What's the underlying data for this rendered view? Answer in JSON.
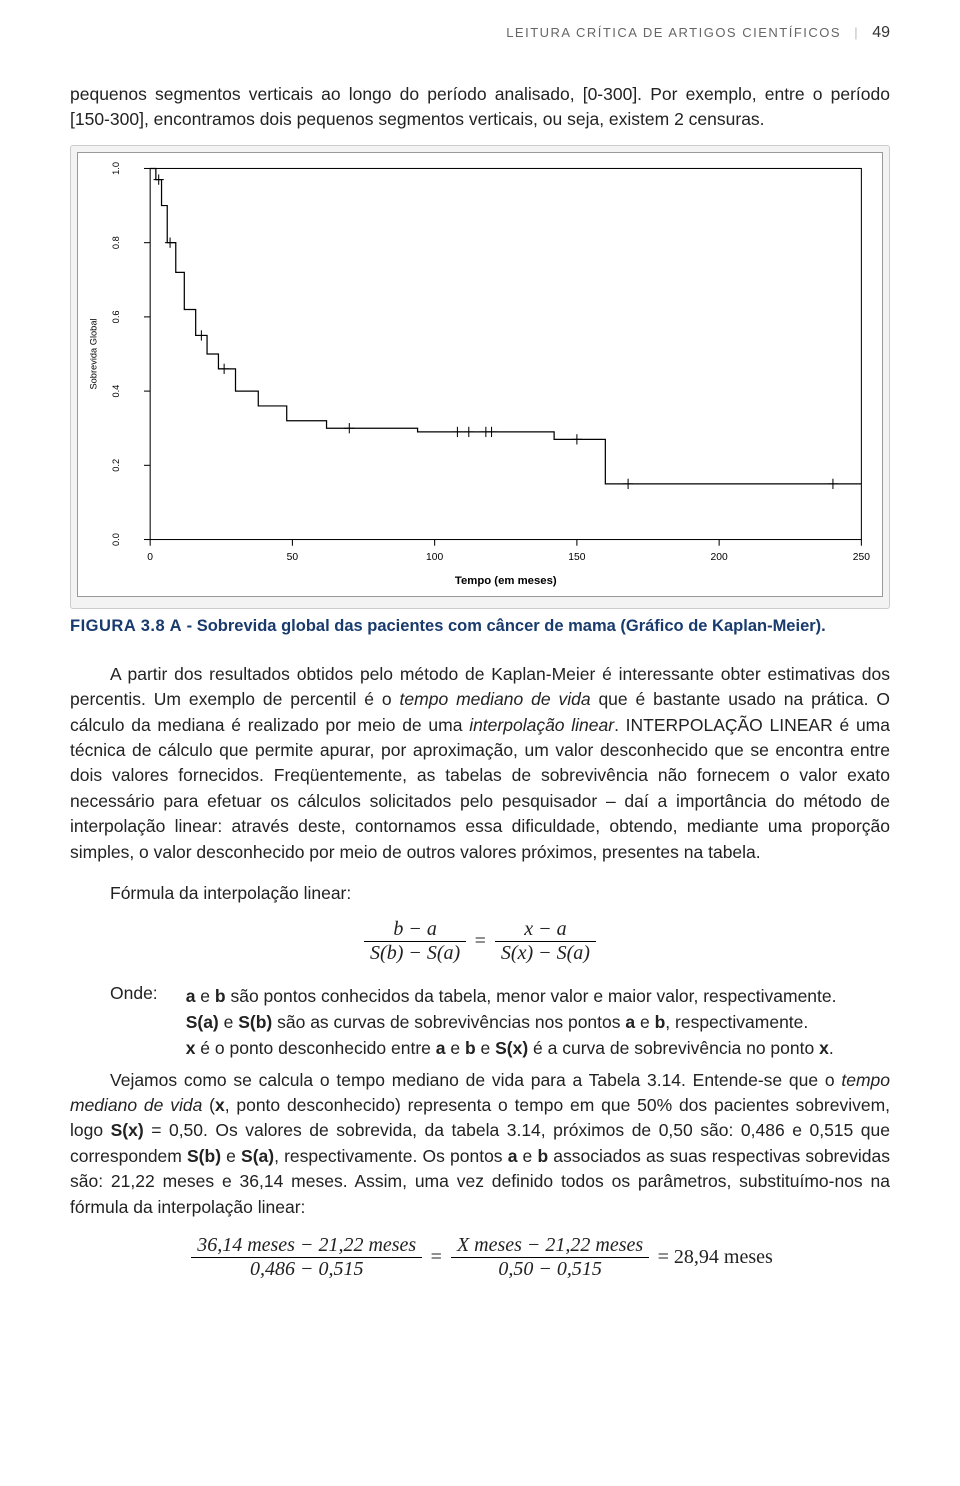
{
  "header": {
    "title": "LEITURA CRÍTICA DE ARTIGOS CIENTÍFICOS",
    "page": "49"
  },
  "p1": "pequenos segmentos verticais ao longo do período analisado, [0-300]. Por exemplo, entre o período [150-300], encontramos dois pequenos segmentos verticais, ou seja, existem 2 censuras.",
  "chart": {
    "type": "step-line",
    "xlabel": "Tempo (em meses)",
    "ylabel": "Sobrevida Global",
    "xlim": [
      0,
      250
    ],
    "ylim": [
      0,
      1.0
    ],
    "xticks": [
      0,
      50,
      100,
      150,
      200,
      250
    ],
    "yticks": [
      0.0,
      0.2,
      0.4,
      0.6,
      0.8,
      1.0
    ],
    "yticklabels": [
      "0.0",
      "0.2",
      "0.4",
      "0.6",
      "0.8",
      "1.0"
    ],
    "line_color": "#000000",
    "line_width": 1.2,
    "censor_mark": "+",
    "censor_size": 10,
    "background_color": "#ffffff",
    "axis_color": "#000000",
    "label_fontsize": 9,
    "tick_fontsize": 8,
    "steps": [
      [
        0,
        1.0
      ],
      [
        2,
        1.0
      ],
      [
        2,
        0.97
      ],
      [
        4,
        0.97
      ],
      [
        4,
        0.9
      ],
      [
        6,
        0.9
      ],
      [
        6,
        0.8
      ],
      [
        9,
        0.8
      ],
      [
        9,
        0.72
      ],
      [
        12,
        0.72
      ],
      [
        12,
        0.62
      ],
      [
        16,
        0.62
      ],
      [
        16,
        0.55
      ],
      [
        20,
        0.55
      ],
      [
        20,
        0.5
      ],
      [
        24,
        0.5
      ],
      [
        24,
        0.46
      ],
      [
        30,
        0.46
      ],
      [
        30,
        0.4
      ],
      [
        38,
        0.4
      ],
      [
        38,
        0.36
      ],
      [
        48,
        0.36
      ],
      [
        48,
        0.32
      ],
      [
        62,
        0.32
      ],
      [
        62,
        0.3
      ],
      [
        94,
        0.3
      ],
      [
        94,
        0.29
      ],
      [
        142,
        0.29
      ],
      [
        142,
        0.27
      ],
      [
        160,
        0.27
      ],
      [
        160,
        0.15
      ],
      [
        250,
        0.15
      ]
    ],
    "censors": [
      [
        3,
        0.97
      ],
      [
        7,
        0.8
      ],
      [
        18,
        0.55
      ],
      [
        26,
        0.46
      ],
      [
        70,
        0.3
      ],
      [
        108,
        0.29
      ],
      [
        112,
        0.29
      ],
      [
        118,
        0.29
      ],
      [
        120,
        0.29
      ],
      [
        150,
        0.27
      ],
      [
        168,
        0.15
      ],
      [
        240,
        0.15
      ]
    ]
  },
  "figcaption": {
    "label": "FIGURA 3.8 A",
    "text": " - Sobrevida global das pacientes com câncer de mama (Gráfico de Kaplan-Meier)."
  },
  "p2a": "A partir dos resultados obtidos pelo método de Kaplan-Meier é interessante obter estimativas dos percentis. Um exemplo de percentil é o ",
  "p2b": "tempo mediano de vida",
  "p2c": " que é bastante usado na prática. O cálculo da mediana é realizado por meio de uma ",
  "p2d": "interpolação linear",
  "p2e": ". INTERPOLAÇÃO LINEAR é uma técnica de cálculo que permite apurar, por aproximação, um valor desconhecido que se encontra entre dois valores fornecidos. Freqüentemente, as tabelas de sobrevivência não fornecem o valor exato necessário para efetuar os cálculos solicitados pelo pesquisador – daí a importância do método de interpolação linear: através deste, contornamos essa dificuldade, obtendo, mediante uma proporção simples, o valor desconhecido por meio de outros valores próximos, presentes na tabela.",
  "sub1": "Fórmula da interpolação linear:",
  "formula1": {
    "lnum": "b − a",
    "lden": "S(b)   −   S(a)",
    "rnum": "x − a",
    "rden": "S(x) −   S(a)"
  },
  "onde": "Onde:",
  "def1a": "a",
  "def1b": " e ",
  "def1c": "b",
  "def1d": " são pontos conhecidos da tabela, menor valor e maior valor, respectivamente.",
  "def2a": "S(a)",
  "def2b": " e ",
  "def2c": "S(b)",
  "def2d": " são as curvas de sobrevivências nos pontos ",
  "def2e": "a",
  "def2f": " e ",
  "def2g": "b",
  "def2h": ", respectivamente.",
  "def3a": "x",
  "def3b": " é o ponto desconhecido entre ",
  "def3c": "a",
  "def3d": " e ",
  "def3e": "b",
  "def3f": " e ",
  "def3g": "S(x)",
  "def3h": " é a curva de sobrevivência no ponto ",
  "def3i": "x",
  "def3j": ".",
  "p3a": "Vejamos como se calcula o tempo mediano de vida para a Tabela 3.14. Entende-se que o ",
  "p3b": "tempo mediano de vida",
  "p3c": " (",
  "p3d": "x",
  "p3e": ", ponto desconhecido) representa o tempo em que 50% dos pacientes sobrevivem, logo ",
  "p3f": "S(x)",
  "p3g": " = 0,50. Os valores de sobrevida, da tabela 3.14, próximos de 0,50 são: 0,486 e 0,515 que correspondem ",
  "p3h": "S(b)",
  "p3i": " e ",
  "p3j": "S(a)",
  "p3k": ", respectivamente. Os pontos ",
  "p3l": "a",
  "p3m": " e ",
  "p3n": "b",
  "p3o": " associados as suas respectivas sobrevidas são: 21,22 meses e 36,14 meses. Assim, uma vez definido todos os parâmetros, substituímo-nos na fórmula da interpolação linear:",
  "formula2": {
    "lnum": "36,14 meses − 21,22 meses",
    "lden": "0,486   −   0,515",
    "rnum": "X meses − 21,22 meses",
    "rden": "0,50   −   0,515",
    "result": "= 28,94 meses"
  }
}
